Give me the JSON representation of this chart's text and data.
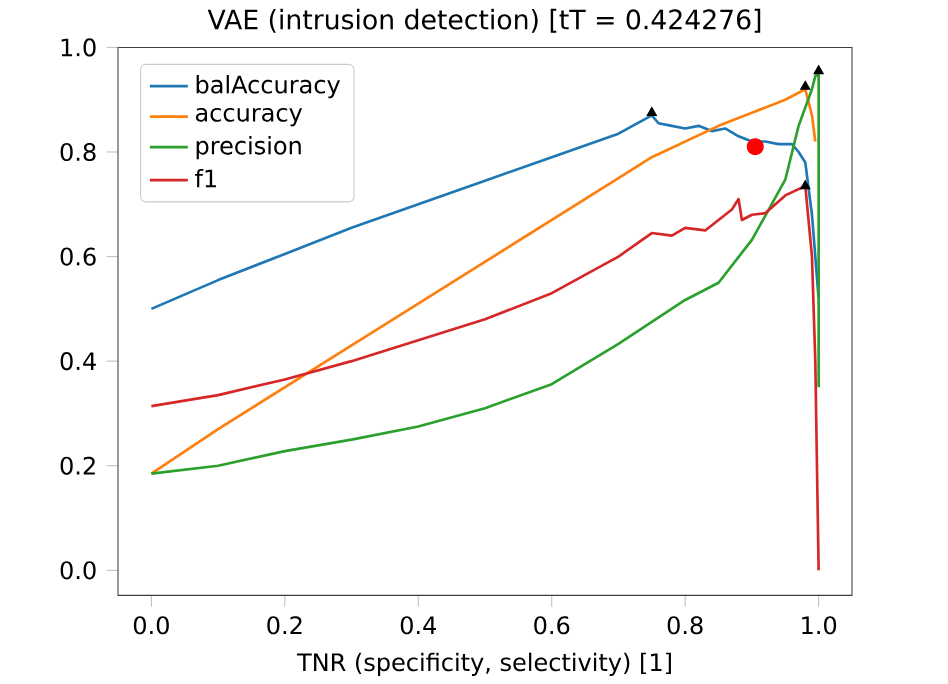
{
  "chart_data": {
    "type": "line",
    "title": "VAE (intrusion detection) [tT = 0.424276]",
    "xlabel": "TNR (specificity, selectivity) [1]",
    "xlim": [
      -0.05,
      1.05
    ],
    "ylim": [
      -0.048,
      1.0
    ],
    "xticks": [
      {
        "value": 0,
        "label": "0.0"
      },
      {
        "value": 0.2,
        "label": "0.2"
      },
      {
        "value": 0.4,
        "label": "0.4"
      },
      {
        "value": 0.6,
        "label": "0.6"
      },
      {
        "value": 0.8,
        "label": "0.8"
      },
      {
        "value": 1.0,
        "label": "1.0"
      }
    ],
    "yticks": [
      {
        "value": 0,
        "label": "0.0"
      },
      {
        "value": 0.2,
        "label": "0.2"
      },
      {
        "value": 0.4,
        "label": "0.4"
      },
      {
        "value": 0.6,
        "label": "0.6"
      },
      {
        "value": 0.8,
        "label": "0.8"
      },
      {
        "value": 1.0,
        "label": "1.0"
      }
    ],
    "legend": "top left",
    "grid": false,
    "series": [
      {
        "name": "balAccuracy",
        "color": "#1f77b4",
        "x": [
          0,
          0.1,
          0.2,
          0.3,
          0.4,
          0.5,
          0.6,
          0.7,
          0.75,
          0.76,
          0.78,
          0.8,
          0.82,
          0.84,
          0.86,
          0.88,
          0.9,
          0.92,
          0.94,
          0.96,
          0.97,
          0.98,
          0.99,
          0.995,
          1.0
        ],
        "values": [
          0.5,
          0.555,
          0.605,
          0.655,
          0.7,
          0.745,
          0.79,
          0.835,
          0.87,
          0.855,
          0.85,
          0.845,
          0.85,
          0.84,
          0.845,
          0.83,
          0.82,
          0.82,
          0.815,
          0.815,
          0.8,
          0.78,
          0.68,
          0.6,
          0.52
        ]
      },
      {
        "name": "accuracy",
        "color": "#ff7f0e",
        "x": [
          0,
          0.1,
          0.2,
          0.3,
          0.4,
          0.5,
          0.6,
          0.7,
          0.75,
          0.8,
          0.85,
          0.9,
          0.95,
          0.98,
          0.99,
          0.995
        ],
        "values": [
          0.185,
          0.27,
          0.35,
          0.43,
          0.51,
          0.59,
          0.67,
          0.75,
          0.79,
          0.82,
          0.85,
          0.875,
          0.9,
          0.92,
          0.87,
          0.82
        ]
      },
      {
        "name": "precision",
        "color": "#2ca02c",
        "x": [
          0,
          0.1,
          0.2,
          0.3,
          0.4,
          0.5,
          0.6,
          0.7,
          0.8,
          0.85,
          0.9,
          0.95,
          0.97,
          0.99,
          0.995,
          1.0,
          1.0
        ],
        "values": [
          0.185,
          0.2,
          0.228,
          0.25,
          0.275,
          0.31,
          0.356,
          0.433,
          0.517,
          0.55,
          0.632,
          0.747,
          0.85,
          0.92,
          0.945,
          0.95,
          0.35
        ]
      },
      {
        "name": "f1",
        "color": "#d62728",
        "x": [
          0,
          0.1,
          0.2,
          0.3,
          0.4,
          0.5,
          0.6,
          0.7,
          0.75,
          0.78,
          0.8,
          0.83,
          0.85,
          0.87,
          0.88,
          0.885,
          0.9,
          0.92,
          0.95,
          0.98,
          0.99,
          0.995,
          1.0
        ],
        "values": [
          0.314,
          0.335,
          0.365,
          0.4,
          0.44,
          0.48,
          0.53,
          0.6,
          0.645,
          0.64,
          0.655,
          0.65,
          0.67,
          0.69,
          0.71,
          0.67,
          0.68,
          0.683,
          0.717,
          0.735,
          0.6,
          0.4,
          0.0
        ]
      },
      {
        "type": "scatter",
        "marker": "triangle",
        "color": "#000000",
        "x": [
          0.75,
          0.98,
          0.98,
          1.0
        ],
        "values": [
          0.875,
          0.925,
          0.735,
          0.955
        ]
      },
      {
        "type": "scatter",
        "marker": "circle",
        "color": "#ff0000",
        "x": [
          0.905
        ],
        "values": [
          0.81
        ]
      }
    ]
  }
}
